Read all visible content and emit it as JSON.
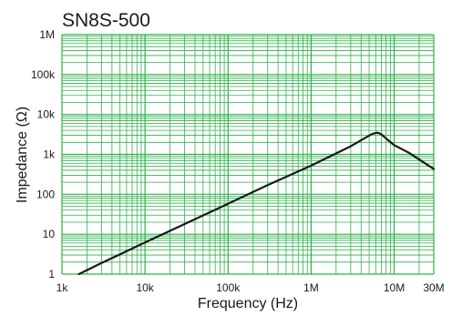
{
  "chart_data": {
    "type": "line",
    "title": "SN8S-500",
    "xlabel": "Frequency (Hz)",
    "ylabel": "Impedance (Ω)",
    "x_scale": "log",
    "y_scale": "log",
    "xlim": [
      1000,
      30000000
    ],
    "ylim": [
      1,
      1000000
    ],
    "grid": true,
    "x_ticks": [
      {
        "value": 1000,
        "label": "1k"
      },
      {
        "value": 10000,
        "label": "10k"
      },
      {
        "value": 100000,
        "label": "100k"
      },
      {
        "value": 1000000,
        "label": "1M"
      },
      {
        "value": 10000000,
        "label": "10M"
      },
      {
        "value": 30000000,
        "label": "30M"
      }
    ],
    "y_ticks": [
      {
        "value": 1,
        "label": "1"
      },
      {
        "value": 10,
        "label": "10"
      },
      {
        "value": 100,
        "label": "100"
      },
      {
        "value": 1000,
        "label": "1k"
      },
      {
        "value": 10000,
        "label": "10k"
      },
      {
        "value": 100000,
        "label": "100k"
      },
      {
        "value": 1000000,
        "label": "1M"
      }
    ],
    "series": [
      {
        "color": "#1a1a1a",
        "x": [
          1600,
          3000,
          10000,
          30000,
          100000,
          300000,
          1000000,
          3000000,
          4500000,
          5500000,
          6300000,
          7000000,
          8000000,
          10000000,
          15000000,
          30000000
        ],
        "y": [
          1,
          1.9,
          6.2,
          18,
          58,
          170,
          520,
          1600,
          2600,
          3300,
          3500,
          3200,
          2500,
          1700,
          1100,
          430
        ]
      }
    ]
  },
  "colors": {
    "grid": "#2fb24a",
    "curve": "#1a1a1a",
    "text": "#1a1a1a"
  }
}
